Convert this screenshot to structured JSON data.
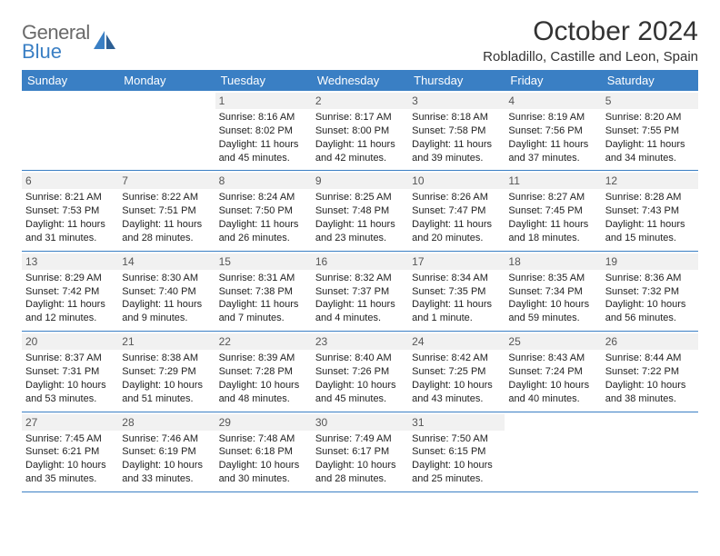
{
  "brand": {
    "name_line1": "General",
    "name_line2": "Blue",
    "logo_color": "#3a7fc4",
    "text_color": "#6a6a6a"
  },
  "header": {
    "title": "October 2024",
    "location": "Robladillo, Castille and Leon, Spain"
  },
  "colors": {
    "header_bg": "#3a7fc4",
    "header_text": "#ffffff",
    "daynum_bg": "#f1f1f1",
    "daynum_text": "#555555",
    "body_text": "#222222",
    "border": "#3a7fc4"
  },
  "calendar": {
    "type": "table",
    "weekdays": [
      "Sunday",
      "Monday",
      "Tuesday",
      "Wednesday",
      "Thursday",
      "Friday",
      "Saturday"
    ],
    "weeks": [
      [
        {
          "day": "",
          "sunrise": "",
          "sunset": "",
          "daylight": ""
        },
        {
          "day": "",
          "sunrise": "",
          "sunset": "",
          "daylight": ""
        },
        {
          "day": "1",
          "sunrise": "Sunrise: 8:16 AM",
          "sunset": "Sunset: 8:02 PM",
          "daylight": "Daylight: 11 hours and 45 minutes."
        },
        {
          "day": "2",
          "sunrise": "Sunrise: 8:17 AM",
          "sunset": "Sunset: 8:00 PM",
          "daylight": "Daylight: 11 hours and 42 minutes."
        },
        {
          "day": "3",
          "sunrise": "Sunrise: 8:18 AM",
          "sunset": "Sunset: 7:58 PM",
          "daylight": "Daylight: 11 hours and 39 minutes."
        },
        {
          "day": "4",
          "sunrise": "Sunrise: 8:19 AM",
          "sunset": "Sunset: 7:56 PM",
          "daylight": "Daylight: 11 hours and 37 minutes."
        },
        {
          "day": "5",
          "sunrise": "Sunrise: 8:20 AM",
          "sunset": "Sunset: 7:55 PM",
          "daylight": "Daylight: 11 hours and 34 minutes."
        }
      ],
      [
        {
          "day": "6",
          "sunrise": "Sunrise: 8:21 AM",
          "sunset": "Sunset: 7:53 PM",
          "daylight": "Daylight: 11 hours and 31 minutes."
        },
        {
          "day": "7",
          "sunrise": "Sunrise: 8:22 AM",
          "sunset": "Sunset: 7:51 PM",
          "daylight": "Daylight: 11 hours and 28 minutes."
        },
        {
          "day": "8",
          "sunrise": "Sunrise: 8:24 AM",
          "sunset": "Sunset: 7:50 PM",
          "daylight": "Daylight: 11 hours and 26 minutes."
        },
        {
          "day": "9",
          "sunrise": "Sunrise: 8:25 AM",
          "sunset": "Sunset: 7:48 PM",
          "daylight": "Daylight: 11 hours and 23 minutes."
        },
        {
          "day": "10",
          "sunrise": "Sunrise: 8:26 AM",
          "sunset": "Sunset: 7:47 PM",
          "daylight": "Daylight: 11 hours and 20 minutes."
        },
        {
          "day": "11",
          "sunrise": "Sunrise: 8:27 AM",
          "sunset": "Sunset: 7:45 PM",
          "daylight": "Daylight: 11 hours and 18 minutes."
        },
        {
          "day": "12",
          "sunrise": "Sunrise: 8:28 AM",
          "sunset": "Sunset: 7:43 PM",
          "daylight": "Daylight: 11 hours and 15 minutes."
        }
      ],
      [
        {
          "day": "13",
          "sunrise": "Sunrise: 8:29 AM",
          "sunset": "Sunset: 7:42 PM",
          "daylight": "Daylight: 11 hours and 12 minutes."
        },
        {
          "day": "14",
          "sunrise": "Sunrise: 8:30 AM",
          "sunset": "Sunset: 7:40 PM",
          "daylight": "Daylight: 11 hours and 9 minutes."
        },
        {
          "day": "15",
          "sunrise": "Sunrise: 8:31 AM",
          "sunset": "Sunset: 7:38 PM",
          "daylight": "Daylight: 11 hours and 7 minutes."
        },
        {
          "day": "16",
          "sunrise": "Sunrise: 8:32 AM",
          "sunset": "Sunset: 7:37 PM",
          "daylight": "Daylight: 11 hours and 4 minutes."
        },
        {
          "day": "17",
          "sunrise": "Sunrise: 8:34 AM",
          "sunset": "Sunset: 7:35 PM",
          "daylight": "Daylight: 11 hours and 1 minute."
        },
        {
          "day": "18",
          "sunrise": "Sunrise: 8:35 AM",
          "sunset": "Sunset: 7:34 PM",
          "daylight": "Daylight: 10 hours and 59 minutes."
        },
        {
          "day": "19",
          "sunrise": "Sunrise: 8:36 AM",
          "sunset": "Sunset: 7:32 PM",
          "daylight": "Daylight: 10 hours and 56 minutes."
        }
      ],
      [
        {
          "day": "20",
          "sunrise": "Sunrise: 8:37 AM",
          "sunset": "Sunset: 7:31 PM",
          "daylight": "Daylight: 10 hours and 53 minutes."
        },
        {
          "day": "21",
          "sunrise": "Sunrise: 8:38 AM",
          "sunset": "Sunset: 7:29 PM",
          "daylight": "Daylight: 10 hours and 51 minutes."
        },
        {
          "day": "22",
          "sunrise": "Sunrise: 8:39 AM",
          "sunset": "Sunset: 7:28 PM",
          "daylight": "Daylight: 10 hours and 48 minutes."
        },
        {
          "day": "23",
          "sunrise": "Sunrise: 8:40 AM",
          "sunset": "Sunset: 7:26 PM",
          "daylight": "Daylight: 10 hours and 45 minutes."
        },
        {
          "day": "24",
          "sunrise": "Sunrise: 8:42 AM",
          "sunset": "Sunset: 7:25 PM",
          "daylight": "Daylight: 10 hours and 43 minutes."
        },
        {
          "day": "25",
          "sunrise": "Sunrise: 8:43 AM",
          "sunset": "Sunset: 7:24 PM",
          "daylight": "Daylight: 10 hours and 40 minutes."
        },
        {
          "day": "26",
          "sunrise": "Sunrise: 8:44 AM",
          "sunset": "Sunset: 7:22 PM",
          "daylight": "Daylight: 10 hours and 38 minutes."
        }
      ],
      [
        {
          "day": "27",
          "sunrise": "Sunrise: 7:45 AM",
          "sunset": "Sunset: 6:21 PM",
          "daylight": "Daylight: 10 hours and 35 minutes."
        },
        {
          "day": "28",
          "sunrise": "Sunrise: 7:46 AM",
          "sunset": "Sunset: 6:19 PM",
          "daylight": "Daylight: 10 hours and 33 minutes."
        },
        {
          "day": "29",
          "sunrise": "Sunrise: 7:48 AM",
          "sunset": "Sunset: 6:18 PM",
          "daylight": "Daylight: 10 hours and 30 minutes."
        },
        {
          "day": "30",
          "sunrise": "Sunrise: 7:49 AM",
          "sunset": "Sunset: 6:17 PM",
          "daylight": "Daylight: 10 hours and 28 minutes."
        },
        {
          "day": "31",
          "sunrise": "Sunrise: 7:50 AM",
          "sunset": "Sunset: 6:15 PM",
          "daylight": "Daylight: 10 hours and 25 minutes."
        },
        {
          "day": "",
          "sunrise": "",
          "sunset": "",
          "daylight": ""
        },
        {
          "day": "",
          "sunrise": "",
          "sunset": "",
          "daylight": ""
        }
      ]
    ]
  }
}
